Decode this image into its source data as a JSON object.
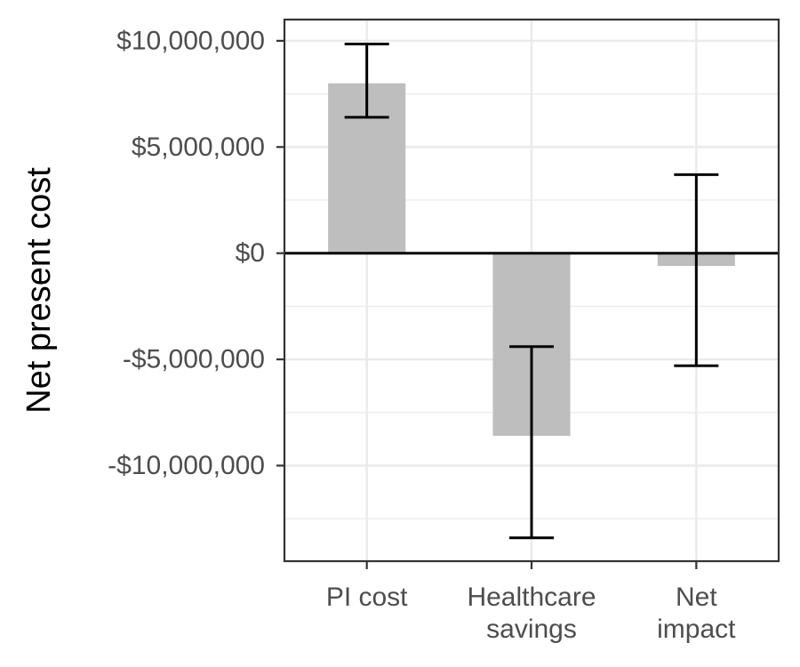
{
  "chart_data": {
    "type": "bar",
    "title": "",
    "xlabel": "",
    "ylabel": "Net present cost",
    "categories": [
      [
        "PI cost"
      ],
      [
        "Healthcare",
        "savings"
      ],
      [
        "Net",
        "impact"
      ]
    ],
    "values": [
      8000000,
      -8600000,
      -600000
    ],
    "error_low": [
      6400000,
      -13400000,
      -5300000
    ],
    "error_high": [
      9850000,
      -4400000,
      3700000
    ],
    "ylim": [
      -14500000,
      11000000
    ],
    "yticks": [
      10000000,
      5000000,
      0,
      -5000000,
      -10000000
    ],
    "ytick_labels": [
      "$10,000,000",
      "$5,000,000",
      "$0",
      "-$5,000,000",
      "-$10,000,000"
    ],
    "grid": true,
    "colors": {
      "bar": "#bebebe",
      "grid": "#ebebeb",
      "errorbar": "#000000",
      "zero_line": "#000000",
      "panel_border": "#333333"
    }
  }
}
